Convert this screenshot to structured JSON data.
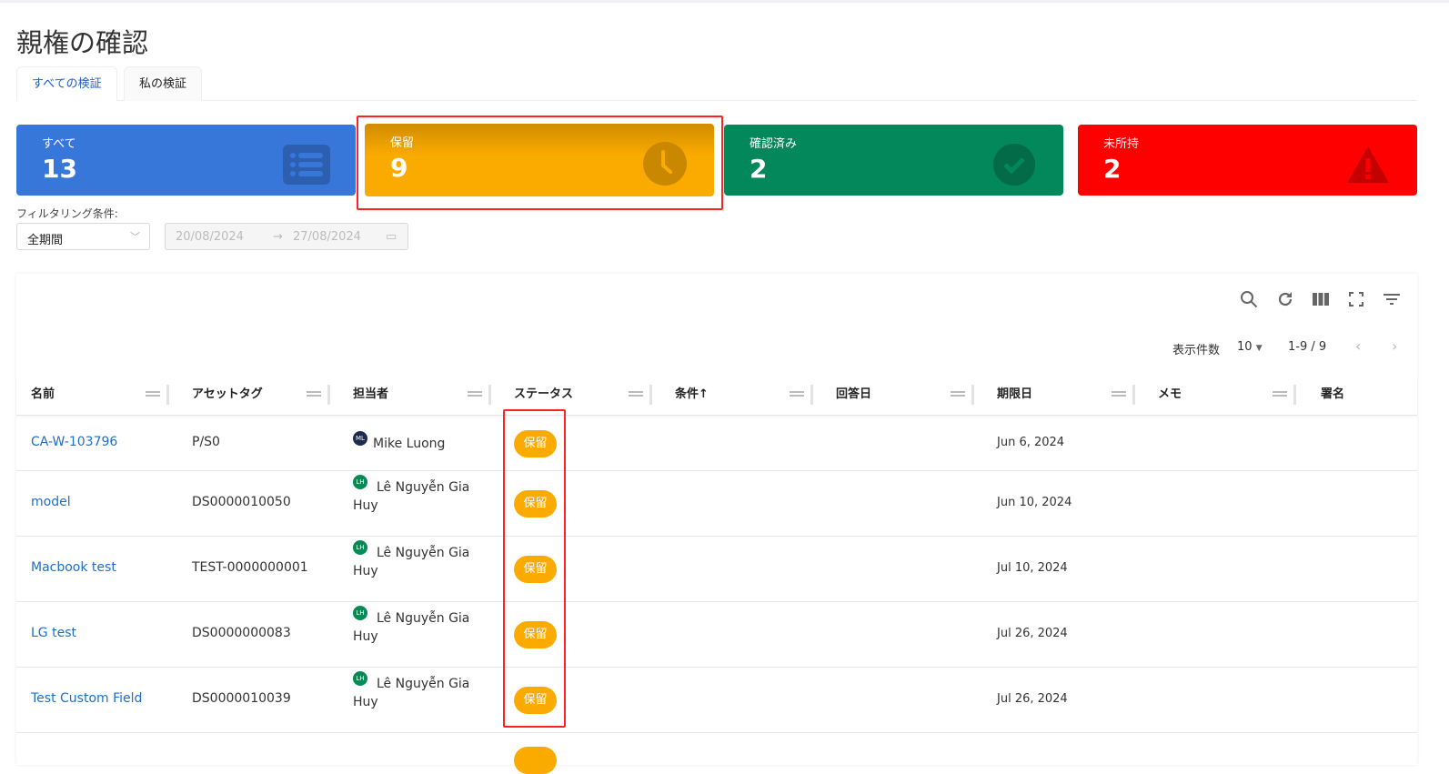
{
  "page": {
    "title": "親権の確認"
  },
  "tabs": [
    {
      "label": "すべての検証",
      "active": true
    },
    {
      "label": "私の検証",
      "active": false
    }
  ],
  "cards": [
    {
      "label": "すべて",
      "value": "13",
      "color": "#3777d9",
      "icon": "list-icon"
    },
    {
      "label": "保留",
      "value": "9",
      "color": "#f7a600",
      "icon": "clock-icon"
    },
    {
      "label": "確認済み",
      "value": "2",
      "color": "#02885a",
      "icon": "check-circle-icon"
    },
    {
      "label": "未所持",
      "value": "2",
      "color": "#ff0000",
      "icon": "warning-icon"
    }
  ],
  "filter": {
    "label": "フィルタリング条件:",
    "period": "全期間",
    "start": "20/08/2024",
    "end": "27/08/2024"
  },
  "toolbar": {
    "icons": [
      "search-icon",
      "refresh-icon",
      "columns-icon",
      "fullscreen-icon",
      "filter-icon"
    ]
  },
  "pager": {
    "page_size_label": "表示件数",
    "page_size": "10",
    "range": "1-9 / 9"
  },
  "columns": [
    "名前",
    "アセットタグ",
    "担当者",
    "ステータス",
    "条件↑",
    "回答日",
    "期限日",
    "メモ",
    "署名"
  ],
  "rows": [
    {
      "name": "CA-W-103796",
      "tag": "P/S0",
      "initials": "ML",
      "avatar_color": "#1d2b4f",
      "assignee": "Mike Luong",
      "status": "保留",
      "due": "Jun 6, 2024"
    },
    {
      "name": "model",
      "tag": "DS0000010050",
      "initials": "LH",
      "avatar_color": "#078a56",
      "assignee": "Lê Nguyễn Gia Huy",
      "status": "保留",
      "due": "Jun 10, 2024"
    },
    {
      "name": "Macbook test",
      "tag": "TEST-0000000001",
      "initials": "LH",
      "avatar_color": "#078a56",
      "assignee": "Lê Nguyễn Gia Huy",
      "status": "保留",
      "due": "Jul 10, 2024"
    },
    {
      "name": "LG test",
      "tag": "DS0000000083",
      "initials": "LH",
      "avatar_color": "#078a56",
      "assignee": "Lê Nguyễn Gia Huy",
      "status": "保留",
      "due": "Jul 26, 2024"
    },
    {
      "name": "Test Custom Field",
      "tag": "DS0000010039",
      "initials": "LH",
      "avatar_color": "#078a56",
      "assignee": "Lê Nguyễn Gia Huy",
      "status": "保留",
      "due": "Jul 26, 2024"
    }
  ]
}
